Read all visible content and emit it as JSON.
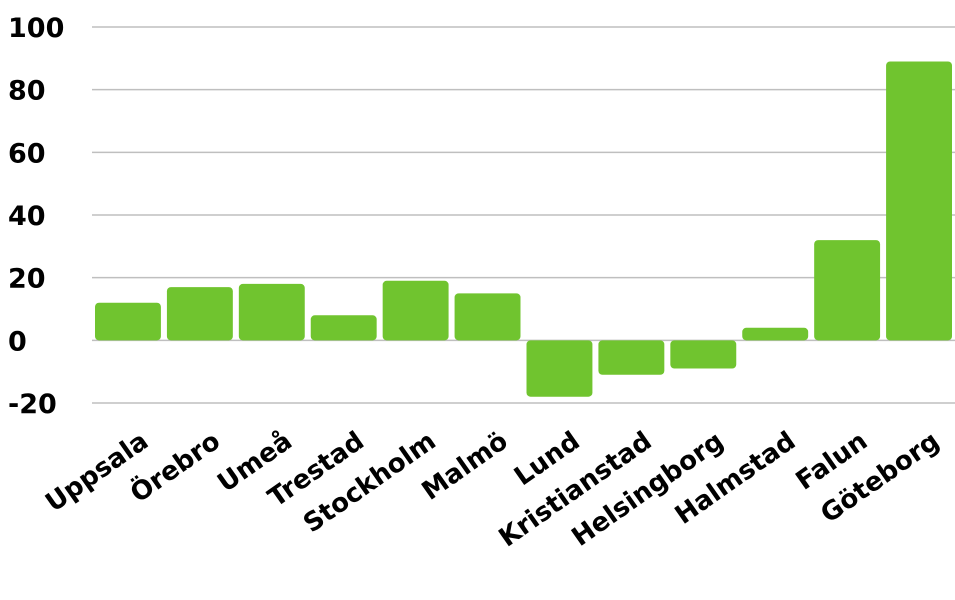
{
  "chart_data": {
    "type": "bar",
    "title": "",
    "xlabel": "",
    "ylabel": "",
    "categories": [
      "Uppsala",
      "Örebro",
      "Umeå",
      "Trestad",
      "Stockholm",
      "Malmö",
      "Lund",
      "Kristianstad",
      "Helsingborg",
      "Halmstad",
      "Falun",
      "Göteborg"
    ],
    "values": [
      12,
      17,
      18,
      8,
      19,
      15,
      -18,
      -11,
      -9,
      4,
      32,
      89
    ],
    "ylim": [
      -20,
      100
    ],
    "yticks": [
      -20,
      0,
      20,
      40,
      60,
      80,
      100
    ],
    "grid": true,
    "bar_color": "#70c42f",
    "grid_color": "#bfbfbf"
  }
}
